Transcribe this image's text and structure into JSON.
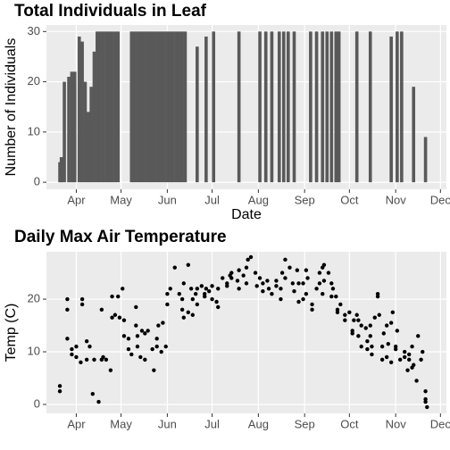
{
  "chart_data": [
    {
      "type": "bar",
      "title": "Total Individuals in Leaf",
      "x_label": "Date",
      "y_label": "Number of Individuals",
      "color": "#595959",
      "grid": true,
      "x": [
        80,
        81,
        83,
        86,
        88,
        90,
        93,
        95,
        97,
        99,
        101,
        103,
        105,
        107,
        109,
        111,
        113,
        115,
        117,
        119,
        128,
        130,
        132,
        134,
        136,
        138,
        140,
        142,
        144,
        146,
        148,
        150,
        152,
        154,
        156,
        158,
        160,
        162,
        164,
        172,
        178,
        183,
        200,
        214,
        218,
        222,
        227,
        230,
        233,
        237,
        248,
        252,
        256,
        259,
        262,
        265,
        267,
        279,
        288,
        302,
        306,
        309,
        317,
        325
      ],
      "values": [
        4,
        5,
        20,
        21,
        22,
        22,
        29,
        28,
        20,
        14,
        19,
        26,
        30,
        30,
        30,
        30,
        30,
        30,
        30,
        30,
        30,
        30,
        30,
        30,
        30,
        30,
        30,
        30,
        30,
        30,
        30,
        30,
        30,
        30,
        30,
        30,
        30,
        30,
        30,
        27,
        29,
        30,
        30,
        30,
        30,
        30,
        30,
        30,
        30,
        30,
        30,
        30,
        30,
        30,
        30,
        30,
        30,
        30,
        30,
        29,
        30,
        30,
        19,
        9
      ],
      "xlim": [
        71,
        339
      ],
      "ylim": [
        -1.4,
        31.3
      ],
      "yticks": [
        0,
        10,
        20,
        30
      ],
      "xticks": [
        {
          "value": 91,
          "label": "Apr"
        },
        {
          "value": 121,
          "label": "May"
        },
        {
          "value": 152,
          "label": "Jun"
        },
        {
          "value": 182,
          "label": "Jul"
        },
        {
          "value": 213,
          "label": "Aug"
        },
        {
          "value": 244,
          "label": "Sep"
        },
        {
          "value": 274,
          "label": "Oct"
        },
        {
          "value": 305,
          "label": "Nov"
        },
        {
          "value": 335,
          "label": "Dec"
        }
      ]
    },
    {
      "type": "scatter",
      "title": "Daily Max Air Temperature",
      "y_label": "Temp (C)",
      "color": "#000000",
      "grid": true,
      "x": [
        80,
        80,
        85,
        85,
        85,
        88,
        88,
        91,
        91,
        94,
        95,
        95,
        98,
        98,
        100,
        102,
        103,
        106,
        108,
        108,
        109,
        111,
        114,
        115,
        115,
        117,
        119,
        120,
        122,
        123,
        123,
        126,
        126,
        128,
        131,
        131,
        132,
        132,
        134,
        135,
        137,
        137,
        139,
        142,
        143,
        145,
        145,
        146,
        148,
        149,
        151,
        152,
        152,
        154,
        157,
        160,
        162,
        162,
        163,
        163,
        166,
        166,
        168,
        169,
        169,
        171,
        172,
        172,
        175,
        177,
        177,
        178,
        180,
        182,
        182,
        185,
        186,
        186,
        189,
        192,
        192,
        194,
        195,
        195,
        199,
        200,
        200,
        203,
        205,
        205,
        206,
        208,
        211,
        212,
        214,
        216,
        216,
        219,
        220,
        222,
        225,
        225,
        228,
        228,
        229,
        231,
        231,
        234,
        236,
        237,
        239,
        240,
        240,
        243,
        243,
        245,
        245,
        246,
        249,
        249,
        252,
        254,
        254,
        256,
        256,
        257,
        257,
        260,
        262,
        262,
        263,
        265,
        266,
        266,
        268,
        271,
        271,
        274,
        276,
        276,
        277,
        279,
        280,
        280,
        282,
        282,
        285,
        286,
        286,
        288,
        288,
        289,
        289,
        291,
        293,
        293,
        294,
        296,
        296,
        297,
        299,
        299,
        300,
        302,
        302,
        303,
        305,
        305,
        306,
        308,
        311,
        311,
        313,
        314,
        314,
        316,
        316,
        317,
        319,
        320,
        322,
        323,
        325,
        325,
        325,
        326
      ],
      "values": [
        2.5,
        3.5,
        12.5,
        18,
        20,
        9.5,
        10.5,
        11,
        9,
        8,
        20,
        19,
        12,
        8.5,
        11,
        2,
        8.5,
        0.5,
        8.5,
        18,
        9,
        8.5,
        6.5,
        16.5,
        20.5,
        17,
        20.5,
        16.5,
        22,
        13,
        16,
        10.5,
        12.5,
        9.5,
        15,
        18.5,
        11,
        13,
        9,
        14,
        13.5,
        8.5,
        14,
        10.5,
        6.5,
        11,
        12.5,
        15,
        10,
        15.5,
        11,
        19,
        21,
        22,
        26,
        21,
        20,
        18,
        16.5,
        23,
        17.5,
        26.5,
        22,
        20,
        17,
        21,
        22,
        19,
        22.5,
        21,
        20.5,
        22,
        21.5,
        22.5,
        20,
        19.5,
        18.5,
        22,
        24,
        22.5,
        23,
        24.5,
        25,
        24,
        23.5,
        25.5,
        22,
        24.5,
        26,
        23,
        27.5,
        28,
        25,
        22.5,
        24,
        21.5,
        23,
        23.5,
        22,
        21,
        23.5,
        22.5,
        20,
        22,
        25,
        27.5,
        24,
        26,
        23,
        21.5,
        25.5,
        23,
        19.5,
        23,
        20,
        25.5,
        21,
        24,
        19,
        18,
        22,
        25,
        23,
        26,
        21,
        26.5,
        23.5,
        25,
        23,
        20.5,
        22,
        20.5,
        17.5,
        18,
        19,
        17,
        16,
        17.5,
        13.5,
        14,
        16,
        17,
        16,
        13,
        15,
        11,
        14.5,
        10.5,
        12,
        15,
        13,
        11,
        9.5,
        16.5,
        20.5,
        21,
        17,
        11,
        8.5,
        13.5,
        15,
        9,
        11.5,
        8,
        15.5,
        17.5,
        10.5,
        11,
        14,
        8.5,
        9,
        10,
        6.5,
        9.5,
        8.5,
        11,
        7,
        7.5,
        4.5,
        13,
        8.5,
        10,
        2.5,
        1,
        0.5,
        -0.5
      ],
      "xlim": [
        71,
        339
      ],
      "ylim": [
        -1.7,
        29
      ],
      "yticks": [
        0,
        10,
        20
      ],
      "xticks": [
        {
          "value": 91,
          "label": "Apr"
        },
        {
          "value": 121,
          "label": "May"
        },
        {
          "value": 152,
          "label": "Jun"
        },
        {
          "value": 182,
          "label": "Jul"
        },
        {
          "value": 213,
          "label": "Aug"
        },
        {
          "value": 244,
          "label": "Sep"
        },
        {
          "value": 274,
          "label": "Oct"
        },
        {
          "value": 305,
          "label": "Nov"
        },
        {
          "value": 335,
          "label": "Dec"
        }
      ]
    }
  ]
}
